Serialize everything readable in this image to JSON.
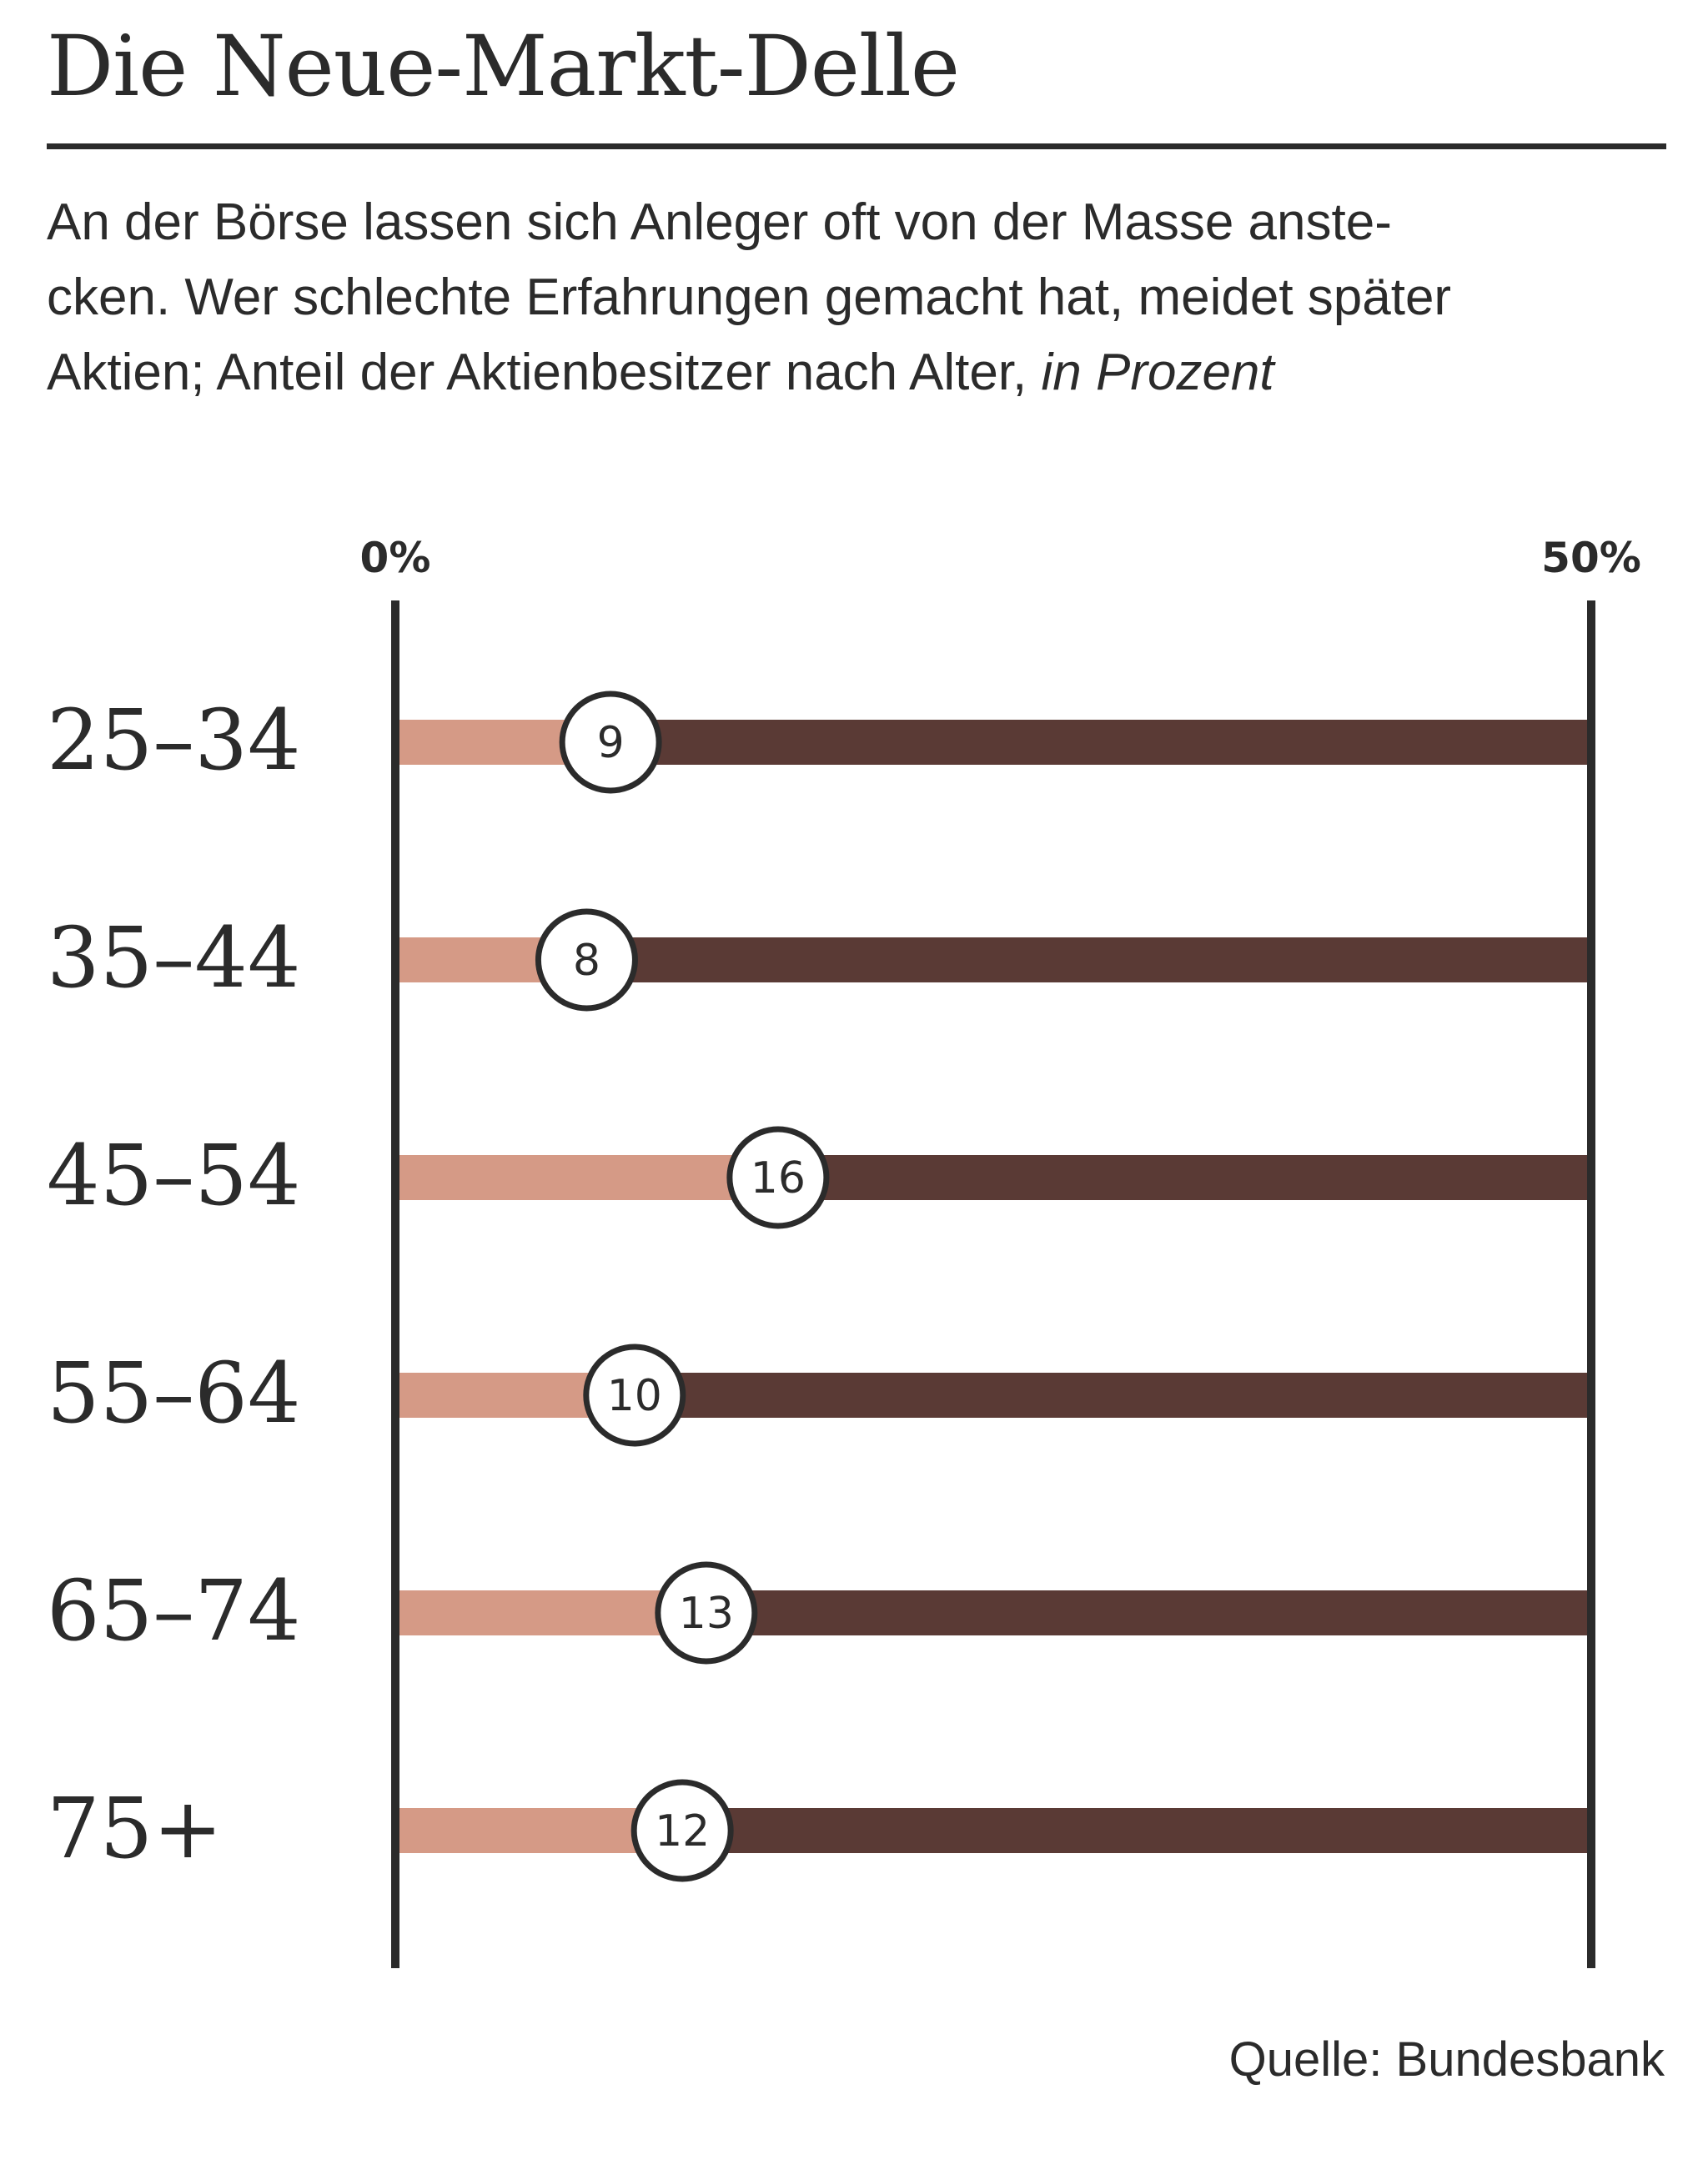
{
  "chart_data": {
    "type": "bar",
    "title": "Die Neue-Markt-Delle",
    "subtitle_lines": [
      "An der Börse lassen sich Anleger oft von der Masse anste-",
      "cken. Wer schlechte Erfahrungen gemacht hat, meidet später",
      "Aktien; Anteil der Aktienbesitzer nach Alter, "
    ],
    "unit_label": "in Prozent",
    "xlabel": "",
    "ylabel": "",
    "xlim": [
      0,
      50
    ],
    "tick_labels": [
      "0%",
      "50%"
    ],
    "tick_values": [
      0,
      50
    ],
    "categories": [
      "25–34",
      "35–44",
      "45–54",
      "55–64",
      "65–74",
      "75+"
    ],
    "values": [
      9,
      8,
      16,
      10,
      13,
      12
    ],
    "value_labels": [
      "9",
      "8",
      "16",
      "10",
      "13",
      "12"
    ],
    "grid": false,
    "colors": {
      "value_bar": "#d59a86",
      "remainder_bar": "#5a3a35",
      "axis": "#2b2b2b",
      "marker_fill": "#ffffff",
      "marker_stroke": "#2b2b2b",
      "text": "#2b2b2b"
    },
    "source": "Quelle: Bundesbank"
  }
}
